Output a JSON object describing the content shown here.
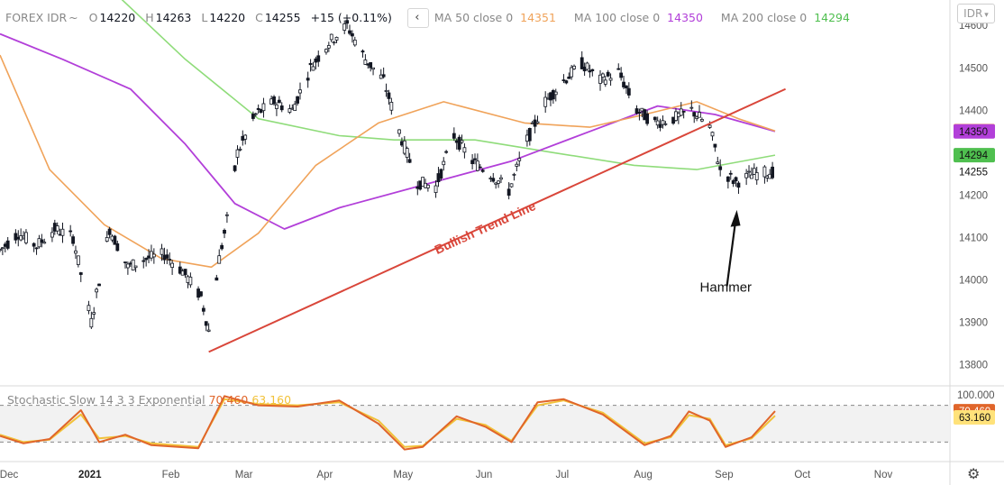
{
  "header": {
    "symbol": "FOREX IDR",
    "suffix": "~",
    "open_label": "O",
    "open": "14220",
    "high_label": "H",
    "high": "14263",
    "low_label": "L",
    "low": "14220",
    "close_label": "C",
    "close": "14255",
    "change": "+15 (+0.11%)",
    "collapse_icon": "chevron-left-icon",
    "ma50_label": "MA 50 close 0",
    "ma50_value": "14351",
    "ma100_label": "MA 100 close 0",
    "ma100_value": "14350",
    "ma200_label": "MA 200 close 0",
    "ma200_value": "14294"
  },
  "ticker_button": {
    "label": "IDR",
    "icon": "chevron-down-icon"
  },
  "colors": {
    "ma50": "#f0a35a",
    "ma100": "#b23fd9",
    "ma200": "#8fdc7a",
    "trendline": "#d9463a",
    "candle": "#131722",
    "stoch_k": "#e0652a",
    "stoch_d": "#f2c23a"
  },
  "annotations": {
    "trendline_label": "Bullish Trend Line",
    "hammer_label": "Hammer"
  },
  "stochastic": {
    "label": "Stochastic Slow 14 3 3 Exponential",
    "k_value": "70.460",
    "d_value": "63.160",
    "axis_label": "100.000",
    "upper_band": 80,
    "lower_band": 20
  },
  "settings_icon": "gear-icon",
  "chart_data": {
    "type": "candlestick",
    "price_axis": {
      "ticks": [
        14600,
        14500,
        14400,
        14300,
        14200,
        14100,
        14000,
        13900,
        13800
      ],
      "tick_labels": [
        "14600",
        "14500",
        "14400",
        "14300",
        "14200",
        "14100",
        "14000",
        "13900",
        "13800"
      ],
      "range": [
        13750,
        14660
      ]
    },
    "price_tags": [
      {
        "value": 14351,
        "label": "14351",
        "color": "#f0a35a"
      },
      {
        "value": 14350,
        "label": "14350",
        "color": "#b23fd9"
      },
      {
        "value": 14294,
        "label": "14294",
        "color": "#4fbf4f"
      },
      {
        "value": 14255,
        "label": "14255",
        "color": "none"
      }
    ],
    "time_axis": {
      "labels": [
        "Dec",
        "2021",
        "Feb",
        "Mar",
        "Apr",
        "May",
        "Jun",
        "Jul",
        "Aug",
        "Sep",
        "Oct",
        "Nov"
      ],
      "bold": [
        "2021"
      ],
      "start": "2020-12-01",
      "end": "2021-11-30"
    },
    "close_series": [
      [
        "2020-12-01",
        14070
      ],
      [
        "2020-12-08",
        14110
      ],
      [
        "2020-12-15",
        14080
      ],
      [
        "2020-12-22",
        14120
      ],
      [
        "2020-12-29",
        14100
      ],
      [
        "2021-01-05",
        13900
      ],
      [
        "2021-01-08",
        14000
      ],
      [
        "2021-01-12",
        14120
      ],
      [
        "2021-01-19",
        14030
      ],
      [
        "2021-01-26",
        14050
      ],
      [
        "2021-02-02",
        14060
      ],
      [
        "2021-02-09",
        14020
      ],
      [
        "2021-02-16",
        13960
      ],
      [
        "2021-02-19",
        13880
      ],
      [
        "2021-02-23",
        14050
      ],
      [
        "2021-02-26",
        14140
      ],
      [
        "2021-03-02",
        14300
      ],
      [
        "2021-03-09",
        14390
      ],
      [
        "2021-03-16",
        14420
      ],
      [
        "2021-03-23",
        14400
      ],
      [
        "2021-03-30",
        14500
      ],
      [
        "2021-04-06",
        14560
      ],
      [
        "2021-04-13",
        14600
      ],
      [
        "2021-04-20",
        14520
      ],
      [
        "2021-04-27",
        14470
      ],
      [
        "2021-05-04",
        14330
      ],
      [
        "2021-05-10",
        14230
      ],
      [
        "2021-05-17",
        14220
      ],
      [
        "2021-05-24",
        14340
      ],
      [
        "2021-05-31",
        14280
      ],
      [
        "2021-06-07",
        14250
      ],
      [
        "2021-06-14",
        14210
      ],
      [
        "2021-06-21",
        14330
      ],
      [
        "2021-06-28",
        14420
      ],
      [
        "2021-07-05",
        14470
      ],
      [
        "2021-07-12",
        14510
      ],
      [
        "2021-07-19",
        14470
      ],
      [
        "2021-07-26",
        14490
      ],
      [
        "2021-08-02",
        14400
      ],
      [
        "2021-08-09",
        14370
      ],
      [
        "2021-08-16",
        14380
      ],
      [
        "2021-08-23",
        14400
      ],
      [
        "2021-08-30",
        14360
      ],
      [
        "2021-09-03",
        14260
      ],
      [
        "2021-09-09",
        14230
      ],
      [
        "2021-09-16",
        14250
      ],
      [
        "2021-09-24",
        14255
      ]
    ],
    "ma50": [
      [
        "2020-12-01",
        14530
      ],
      [
        "2020-12-20",
        14260
      ],
      [
        "2021-01-10",
        14130
      ],
      [
        "2021-02-01",
        14050
      ],
      [
        "2021-02-20",
        14030
      ],
      [
        "2021-03-10",
        14110
      ],
      [
        "2021-04-01",
        14270
      ],
      [
        "2021-04-25",
        14370
      ],
      [
        "2021-05-20",
        14420
      ],
      [
        "2021-06-20",
        14370
      ],
      [
        "2021-07-15",
        14360
      ],
      [
        "2021-08-05",
        14390
      ],
      [
        "2021-08-25",
        14420
      ],
      [
        "2021-09-10",
        14380
      ],
      [
        "2021-09-24",
        14351
      ]
    ],
    "ma100": [
      [
        "2020-12-01",
        14580
      ],
      [
        "2020-12-25",
        14520
      ],
      [
        "2021-01-20",
        14450
      ],
      [
        "2021-02-10",
        14320
      ],
      [
        "2021-03-01",
        14180
      ],
      [
        "2021-03-20",
        14120
      ],
      [
        "2021-04-10",
        14170
      ],
      [
        "2021-05-10",
        14220
      ],
      [
        "2021-06-15",
        14280
      ],
      [
        "2021-07-15",
        14350
      ],
      [
        "2021-08-10",
        14410
      ],
      [
        "2021-09-01",
        14390
      ],
      [
        "2021-09-24",
        14350
      ]
    ],
    "ma200": [
      [
        "2020-12-01",
        14800
      ],
      [
        "2021-01-10",
        14700
      ],
      [
        "2021-02-10",
        14520
      ],
      [
        "2021-03-10",
        14380
      ],
      [
        "2021-04-10",
        14340
      ],
      [
        "2021-05-01",
        14330
      ],
      [
        "2021-06-01",
        14330
      ],
      [
        "2021-07-01",
        14300
      ],
      [
        "2021-08-01",
        14270
      ],
      [
        "2021-08-25",
        14260
      ],
      [
        "2021-09-24",
        14294
      ]
    ],
    "trendline": [
      [
        "2021-02-19",
        13830
      ],
      [
        "2021-09-28",
        14450
      ]
    ],
    "stoch_k": [
      [
        "2020-12-01",
        30
      ],
      [
        "2020-12-10",
        18
      ],
      [
        "2020-12-20",
        25
      ],
      [
        "2021-01-01",
        72
      ],
      [
        "2021-01-08",
        20
      ],
      [
        "2021-01-18",
        32
      ],
      [
        "2021-01-28",
        15
      ],
      [
        "2021-02-15",
        10
      ],
      [
        "2021-02-25",
        95
      ],
      [
        "2021-03-10",
        80
      ],
      [
        "2021-03-25",
        78
      ],
      [
        "2021-04-10",
        88
      ],
      [
        "2021-04-25",
        50
      ],
      [
        "2021-05-05",
        8
      ],
      [
        "2021-05-12",
        12
      ],
      [
        "2021-05-25",
        62
      ],
      [
        "2021-06-05",
        45
      ],
      [
        "2021-06-15",
        20
      ],
      [
        "2021-06-25",
        85
      ],
      [
        "2021-07-05",
        90
      ],
      [
        "2021-07-20",
        65
      ],
      [
        "2021-08-05",
        15
      ],
      [
        "2021-08-15",
        30
      ],
      [
        "2021-08-22",
        70
      ],
      [
        "2021-08-30",
        55
      ],
      [
        "2021-09-05",
        12
      ],
      [
        "2021-09-15",
        28
      ],
      [
        "2021-09-24",
        70.46
      ]
    ],
    "stoch_d": [
      [
        "2020-12-01",
        32
      ],
      [
        "2020-12-10",
        20
      ],
      [
        "2020-12-20",
        24
      ],
      [
        "2021-01-01",
        65
      ],
      [
        "2021-01-08",
        26
      ],
      [
        "2021-01-18",
        30
      ],
      [
        "2021-01-28",
        18
      ],
      [
        "2021-02-15",
        12
      ],
      [
        "2021-02-25",
        90
      ],
      [
        "2021-03-10",
        82
      ],
      [
        "2021-03-25",
        80
      ],
      [
        "2021-04-10",
        85
      ],
      [
        "2021-04-25",
        55
      ],
      [
        "2021-05-05",
        12
      ],
      [
        "2021-05-12",
        14
      ],
      [
        "2021-05-25",
        58
      ],
      [
        "2021-06-05",
        48
      ],
      [
        "2021-06-15",
        22
      ],
      [
        "2021-06-25",
        80
      ],
      [
        "2021-07-05",
        88
      ],
      [
        "2021-07-20",
        68
      ],
      [
        "2021-08-05",
        18
      ],
      [
        "2021-08-15",
        28
      ],
      [
        "2021-08-22",
        64
      ],
      [
        "2021-08-30",
        58
      ],
      [
        "2021-09-05",
        15
      ],
      [
        "2021-09-15",
        26
      ],
      [
        "2021-09-24",
        63.16
      ]
    ]
  }
}
